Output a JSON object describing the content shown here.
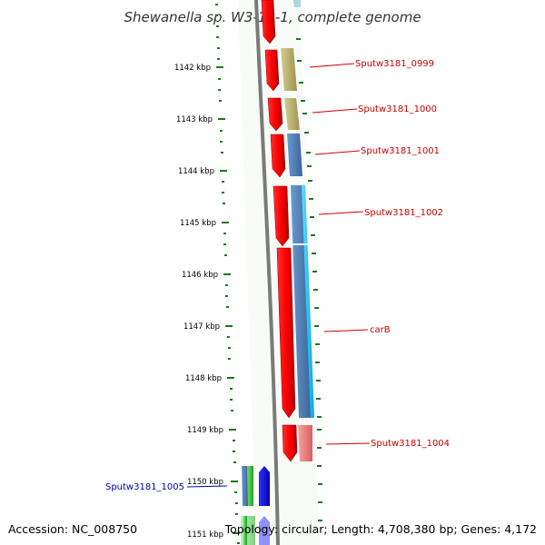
{
  "title": "Shewanella sp. W3-18-1, complete genome",
  "footer": {
    "accession": "Accession: NC_008750",
    "summary": "Topology: circular; Length: 4,708,380 bp; Genes: 4,172"
  },
  "colors": {
    "forward_label": "#cc0000",
    "reverse_label": "#0000aa",
    "tick": "#1a7a1a",
    "backbone": "#7a7a7a"
  },
  "ticks": [
    "1142 kbp",
    "1143 kbp",
    "1144 kbp",
    "1145 kbp",
    "1146 kbp",
    "1147 kbp",
    "1148 kbp",
    "1149 kbp",
    "1150 kbp",
    "1151 kbp"
  ],
  "gene_labels": {
    "g0999": "Sputw3181_0999",
    "g1000": "Sputw3181_1000",
    "g1001": "Sputw3181_1001",
    "g1002": "Sputw3181_1002",
    "carB": "carB",
    "g1004": "Sputw3181_1004",
    "g1005": "Sputw3181_1005"
  }
}
